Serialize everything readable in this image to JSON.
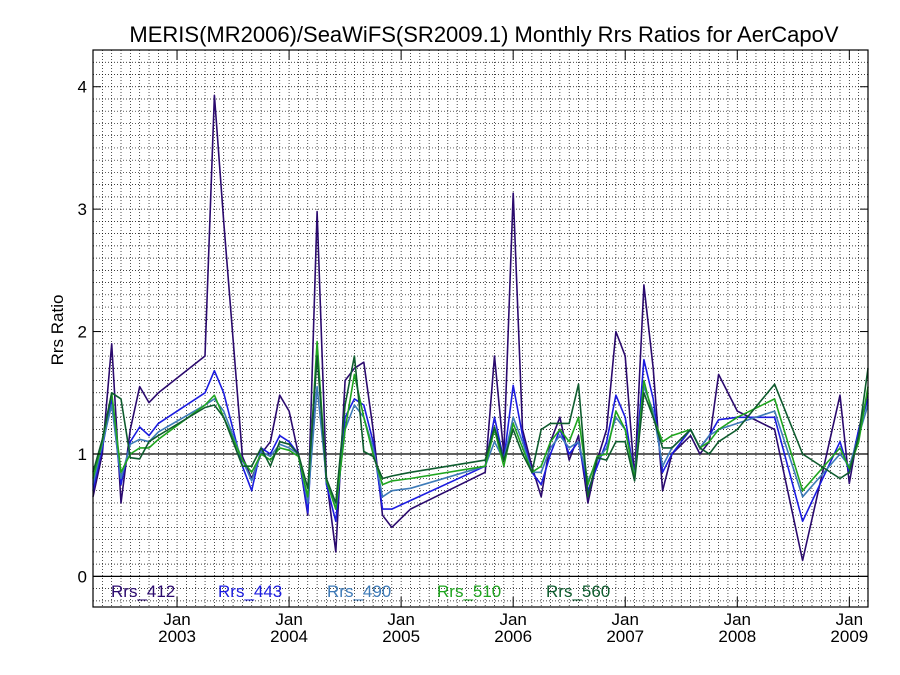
{
  "chart_data": {
    "type": "line",
    "title": "MERIS(MR2006)/SeaWiFS(SR2009.1) Monthly Rrs Ratios for AerCapoV",
    "ylabel": "Rrs Ratio",
    "xlabel": "",
    "xlim": [
      "2002-04-01",
      "2009-03-01"
    ],
    "ylim": [
      -0.25,
      4.3
    ],
    "y_ticks": [
      0,
      1,
      2,
      3,
      4
    ],
    "x_ticks": [
      {
        "date": "2003-01-01",
        "month": "Jan",
        "year": "2003"
      },
      {
        "date": "2004-01-01",
        "month": "Jan",
        "year": "2004"
      },
      {
        "date": "2005-01-01",
        "month": "Jan",
        "year": "2005"
      },
      {
        "date": "2006-01-01",
        "month": "Jan",
        "year": "2006"
      },
      {
        "date": "2007-01-01",
        "month": "Jan",
        "year": "2007"
      },
      {
        "date": "2008-01-01",
        "month": "Jan",
        "year": "2008"
      },
      {
        "date": "2009-01-01",
        "month": "Jan",
        "year": "2009"
      }
    ],
    "reference_line": 1,
    "grid": true,
    "legend_position": "bottom-left",
    "series": [
      {
        "name": "Rrs_412",
        "color": "#2b0a6e",
        "x": [
          "2002-04",
          "2002-05",
          "2002-06",
          "2002-07",
          "2002-08",
          "2002-09",
          "2002-10",
          "2002-11",
          "2003-04",
          "2003-05",
          "2003-06",
          "2003-08",
          "2003-09",
          "2003-10",
          "2003-11",
          "2003-12",
          "2004-01",
          "2004-02",
          "2004-03",
          "2004-04",
          "2004-05",
          "2004-06",
          "2004-07",
          "2004-08",
          "2004-09",
          "2004-10",
          "2004-11",
          "2004-12",
          "2005-02",
          "2005-10",
          "2005-11",
          "2005-12",
          "2006-01",
          "2006-02",
          "2006-03",
          "2006-04",
          "2006-05",
          "2006-06",
          "2006-07",
          "2006-08",
          "2006-09",
          "2006-10",
          "2006-11",
          "2006-12",
          "2007-01",
          "2007-02",
          "2007-03",
          "2007-04",
          "2007-05",
          "2007-06",
          "2007-08",
          "2007-09",
          "2007-10",
          "2007-11",
          "2008-01",
          "2008-05",
          "2008-08",
          "2008-12",
          "2009-01",
          "2009-02",
          "2009-03"
        ],
        "values": [
          0.65,
          1.0,
          1.9,
          0.6,
          1.2,
          1.55,
          1.42,
          1.5,
          1.8,
          3.93,
          2.9,
          0.98,
          0.8,
          1.0,
          1.1,
          1.48,
          1.35,
          1.0,
          0.5,
          2.98,
          0.8,
          0.2,
          1.6,
          1.7,
          1.75,
          1.2,
          0.5,
          0.4,
          0.55,
          0.85,
          1.8,
          1.0,
          3.13,
          1.2,
          0.9,
          0.65,
          1.1,
          1.3,
          0.95,
          1.15,
          0.6,
          0.95,
          1.2,
          2.0,
          1.8,
          0.8,
          2.38,
          1.7,
          0.7,
          1.0,
          1.15,
          1.0,
          1.1,
          1.65,
          1.35,
          1.2,
          0.13,
          1.48,
          0.76,
          1.2,
          1.5
        ]
      },
      {
        "name": "Rrs_443",
        "color": "#1c1ce0",
        "x": [
          "2002-04",
          "2002-05",
          "2002-06",
          "2002-07",
          "2002-08",
          "2002-09",
          "2002-10",
          "2002-11",
          "2003-04",
          "2003-05",
          "2003-06",
          "2003-08",
          "2003-09",
          "2003-10",
          "2003-11",
          "2003-12",
          "2004-01",
          "2004-02",
          "2004-03",
          "2004-04",
          "2004-05",
          "2004-06",
          "2004-07",
          "2004-08",
          "2004-09",
          "2004-10",
          "2004-11",
          "2004-12",
          "2005-02",
          "2005-10",
          "2005-11",
          "2005-12",
          "2006-01",
          "2006-02",
          "2006-03",
          "2006-04",
          "2006-05",
          "2006-06",
          "2006-07",
          "2006-08",
          "2006-09",
          "2006-10",
          "2006-11",
          "2006-12",
          "2007-01",
          "2007-02",
          "2007-03",
          "2007-04",
          "2007-05",
          "2007-06",
          "2007-08",
          "2007-09",
          "2007-10",
          "2007-11",
          "2008-01",
          "2008-05",
          "2008-08",
          "2008-12",
          "2009-01",
          "2009-02",
          "2009-03"
        ],
        "values": [
          0.7,
          1.05,
          1.45,
          0.75,
          1.1,
          1.22,
          1.15,
          1.25,
          1.5,
          1.68,
          1.5,
          0.9,
          0.7,
          1.05,
          1.0,
          1.15,
          1.1,
          1.0,
          0.52,
          1.85,
          0.75,
          0.45,
          1.3,
          1.45,
          1.4,
          1.1,
          0.55,
          0.55,
          0.62,
          0.9,
          1.3,
          0.95,
          1.56,
          1.15,
          0.85,
          0.75,
          1.0,
          1.2,
          1.0,
          1.1,
          0.7,
          0.9,
          1.1,
          1.48,
          1.3,
          0.8,
          1.77,
          1.45,
          0.85,
          1.0,
          1.2,
          1.05,
          1.15,
          1.28,
          1.3,
          1.3,
          0.45,
          1.1,
          0.85,
          1.2,
          1.45
        ]
      },
      {
        "name": "Rrs_490",
        "color": "#3e7bb8",
        "x": [
          "2002-04",
          "2002-05",
          "2002-06",
          "2002-07",
          "2002-08",
          "2002-09",
          "2002-10",
          "2002-11",
          "2003-04",
          "2003-05",
          "2003-06",
          "2003-08",
          "2003-09",
          "2003-10",
          "2003-11",
          "2003-12",
          "2004-01",
          "2004-02",
          "2004-03",
          "2004-04",
          "2004-05",
          "2004-06",
          "2004-07",
          "2004-08",
          "2004-09",
          "2004-10",
          "2004-11",
          "2004-12",
          "2005-02",
          "2005-10",
          "2005-11",
          "2005-12",
          "2006-01",
          "2006-02",
          "2006-03",
          "2006-04",
          "2006-05",
          "2006-06",
          "2006-07",
          "2006-08",
          "2006-09",
          "2006-10",
          "2006-11",
          "2006-12",
          "2007-01",
          "2007-02",
          "2007-03",
          "2007-04",
          "2007-05",
          "2007-06",
          "2007-08",
          "2007-09",
          "2007-10",
          "2007-11",
          "2008-01",
          "2008-05",
          "2008-08",
          "2008-12",
          "2009-01",
          "2009-02",
          "2009-03"
        ],
        "values": [
          0.75,
          1.08,
          1.4,
          0.8,
          1.08,
          1.12,
          1.1,
          1.18,
          1.4,
          1.45,
          1.35,
          0.95,
          0.78,
          1.02,
          0.98,
          1.08,
          1.05,
          1.0,
          0.6,
          1.55,
          0.8,
          0.55,
          1.2,
          1.4,
          1.3,
          1.05,
          0.65,
          0.7,
          0.72,
          0.9,
          1.1,
          0.95,
          1.3,
          1.1,
          0.85,
          0.85,
          1.05,
          1.15,
          1.05,
          1.1,
          0.78,
          0.95,
          1.05,
          1.3,
          1.2,
          0.82,
          1.55,
          1.35,
          0.9,
          1.05,
          1.2,
          1.05,
          1.15,
          1.2,
          1.25,
          1.35,
          0.65,
          1.0,
          0.9,
          1.15,
          1.4
        ]
      },
      {
        "name": "Rrs_510",
        "color": "#1fa51f",
        "x": [
          "2002-04",
          "2002-05",
          "2002-06",
          "2002-07",
          "2002-08",
          "2002-09",
          "2002-10",
          "2002-11",
          "2003-04",
          "2003-05",
          "2003-06",
          "2003-08",
          "2003-09",
          "2003-10",
          "2003-11",
          "2003-12",
          "2004-01",
          "2004-02",
          "2004-03",
          "2004-04",
          "2004-05",
          "2004-06",
          "2004-07",
          "2004-08",
          "2004-09",
          "2004-10",
          "2004-11",
          "2004-12",
          "2005-02",
          "2005-10",
          "2005-11",
          "2005-12",
          "2006-01",
          "2006-02",
          "2006-03",
          "2006-04",
          "2006-05",
          "2006-06",
          "2006-07",
          "2006-08",
          "2006-09",
          "2006-10",
          "2006-11",
          "2006-12",
          "2007-01",
          "2007-02",
          "2007-03",
          "2007-04",
          "2007-05",
          "2007-06",
          "2007-08",
          "2007-09",
          "2007-10",
          "2007-11",
          "2008-01",
          "2008-05",
          "2008-08",
          "2008-12",
          "2009-01",
          "2009-02",
          "2009-03"
        ],
        "values": [
          0.8,
          1.1,
          1.5,
          0.85,
          1.0,
          1.05,
          1.05,
          1.12,
          1.4,
          1.48,
          1.3,
          0.95,
          0.85,
          1.0,
          0.95,
          1.05,
          1.03,
          0.98,
          0.65,
          1.92,
          0.78,
          0.55,
          1.2,
          1.65,
          1.3,
          1.0,
          0.75,
          0.78,
          0.8,
          0.9,
          1.2,
          0.9,
          1.25,
          1.05,
          0.85,
          0.9,
          1.1,
          1.2,
          1.1,
          1.3,
          0.75,
          0.98,
          1.0,
          1.35,
          1.2,
          0.8,
          1.6,
          1.3,
          1.1,
          1.15,
          1.2,
          1.05,
          1.1,
          1.2,
          1.3,
          1.45,
          0.7,
          1.05,
          0.88,
          1.1,
          1.55
        ]
      },
      {
        "name": "Rrs_560",
        "color": "#0e5c2e",
        "x": [
          "2002-04",
          "2002-05",
          "2002-06",
          "2002-07",
          "2002-08",
          "2002-09",
          "2002-10",
          "2002-11",
          "2003-04",
          "2003-05",
          "2003-06",
          "2003-08",
          "2003-09",
          "2003-10",
          "2003-11",
          "2003-12",
          "2004-01",
          "2004-02",
          "2004-03",
          "2004-04",
          "2004-05",
          "2004-06",
          "2004-07",
          "2004-08",
          "2004-09",
          "2004-10",
          "2004-11",
          "2004-12",
          "2005-02",
          "2005-10",
          "2005-11",
          "2005-12",
          "2006-01",
          "2006-02",
          "2006-03",
          "2006-04",
          "2006-05",
          "2006-06",
          "2006-07",
          "2006-08",
          "2006-09",
          "2006-10",
          "2006-11",
          "2006-12",
          "2007-01",
          "2007-02",
          "2007-03",
          "2007-04",
          "2007-05",
          "2007-06",
          "2007-08",
          "2007-09",
          "2007-10",
          "2007-11",
          "2008-01",
          "2008-05",
          "2008-08",
          "2008-12",
          "2009-01",
          "2009-02",
          "2009-03"
        ],
        "values": [
          0.85,
          1.12,
          1.5,
          1.45,
          0.97,
          0.96,
          1.1,
          1.15,
          1.38,
          1.4,
          1.3,
          0.9,
          0.9,
          1.05,
          0.9,
          1.1,
          1.08,
          1.0,
          0.72,
          1.8,
          0.8,
          0.6,
          1.4,
          1.8,
          1.02,
          0.98,
          0.8,
          0.82,
          0.85,
          0.95,
          1.22,
          0.95,
          1.2,
          1.0,
          0.85,
          1.2,
          1.25,
          1.25,
          1.25,
          1.57,
          0.65,
          0.97,
          0.95,
          1.1,
          1.1,
          0.78,
          1.5,
          1.3,
          1.05,
          1.05,
          1.2,
          1.05,
          1.0,
          1.1,
          1.2,
          1.57,
          1.0,
          0.8,
          0.85,
          1.15,
          1.7
        ]
      }
    ]
  }
}
